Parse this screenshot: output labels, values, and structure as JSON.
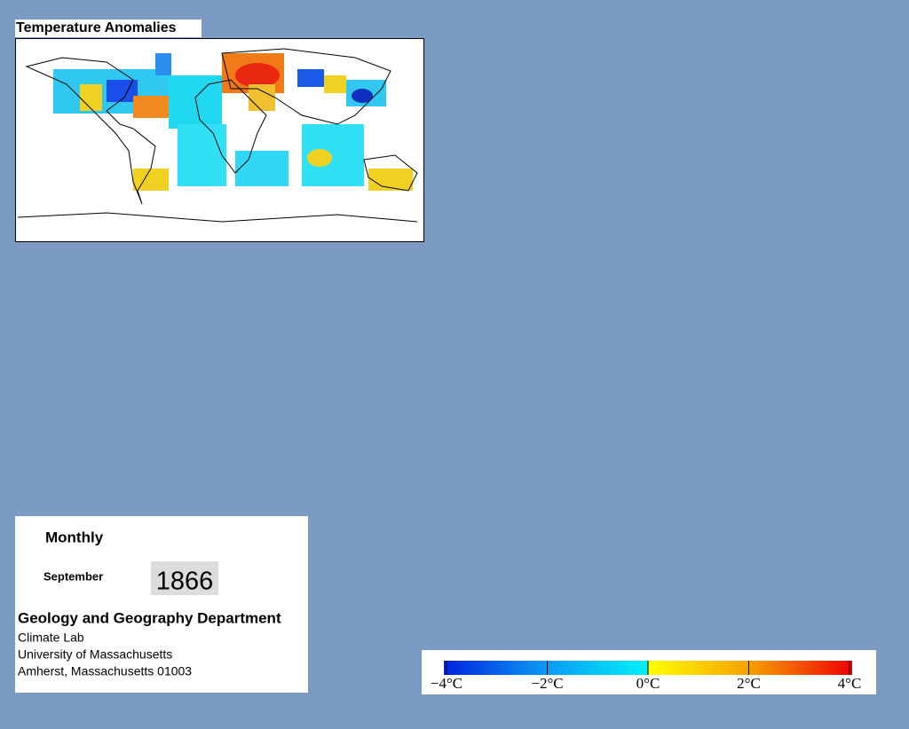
{
  "title": "Temperature Anomalies",
  "panel": {
    "mode": "Monthly",
    "month": "September",
    "year": "1866",
    "department": "Geology and Geography Department",
    "lines": [
      "Climate Lab",
      "University of Massachusetts",
      "Amherst, Massachusetts 01003"
    ]
  },
  "colorbar": {
    "range": [
      -4,
      4
    ],
    "ticks": [
      {
        "value": -4,
        "label": "−4°C"
      },
      {
        "value": -2,
        "label": "−2°C"
      },
      {
        "value": 0,
        "label": "0°C"
      },
      {
        "value": 2,
        "label": "2°C"
      },
      {
        "value": 4,
        "label": "4°C"
      }
    ]
  }
}
